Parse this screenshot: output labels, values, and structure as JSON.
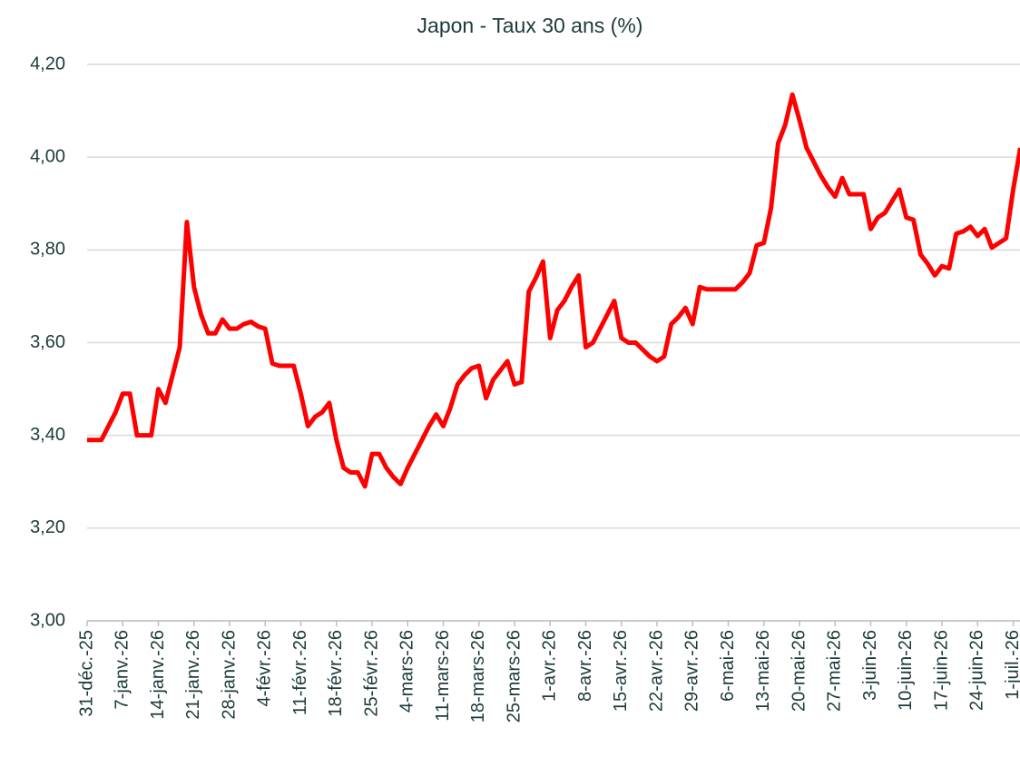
{
  "chart_data": {
    "type": "line",
    "title": "Japon - Taux 30 ans (%)",
    "color": "#ff0000",
    "categories": [
      "31-déc.-25",
      null,
      null,
      null,
      null,
      "7-janv.-26",
      null,
      null,
      null,
      null,
      "14-janv.-26",
      null,
      null,
      null,
      null,
      "21-janv.-26",
      null,
      null,
      null,
      null,
      "28-janv.-26",
      null,
      null,
      null,
      null,
      "4-févr.-26",
      null,
      null,
      null,
      null,
      "11-févr.-26",
      null,
      null,
      null,
      null,
      "18-févr.-26",
      null,
      null,
      null,
      null,
      "25-févr.-26",
      null,
      null,
      null,
      null,
      "4-mars-26",
      null,
      null,
      null,
      null,
      "11-mars-26",
      null,
      null,
      null,
      null,
      "18-mars-26",
      null,
      null,
      null,
      null,
      "25-mars-26",
      null,
      null,
      null,
      null,
      "1-avr.-26",
      null,
      null,
      null,
      null,
      "8-avr.-26",
      null,
      null,
      null,
      null,
      "15-avr.-26",
      null,
      null,
      null,
      null,
      "22-avr.-26",
      null,
      null,
      null,
      null,
      "29-avr.-26",
      null,
      null,
      null,
      null,
      "6-mai-26",
      null,
      null,
      null,
      null,
      "13-mai-26",
      null,
      null,
      null,
      null,
      "20-mai-26",
      null,
      null,
      null,
      null,
      "27-mai-26",
      null,
      null,
      null,
      null,
      "3-juin-26",
      null,
      null,
      null,
      null,
      "10-juin-26",
      null,
      null,
      null,
      null,
      "17-juin-26",
      null,
      null,
      null,
      null,
      "24-juin-26",
      null,
      null,
      null,
      null,
      "1-juil.-26",
      null
    ],
    "values": [
      3.39,
      3.39,
      3.39,
      3.42,
      3.45,
      3.49,
      3.49,
      3.4,
      3.4,
      3.4,
      3.5,
      3.47,
      3.53,
      3.59,
      3.86,
      3.72,
      3.66,
      3.62,
      3.62,
      3.65,
      3.63,
      3.63,
      3.64,
      3.645,
      3.635,
      3.63,
      3.555,
      3.55,
      3.55,
      3.55,
      3.49,
      3.42,
      3.44,
      3.45,
      3.47,
      3.39,
      3.33,
      3.32,
      3.32,
      3.29,
      3.36,
      3.36,
      3.33,
      3.31,
      3.295,
      3.33,
      3.36,
      3.39,
      3.42,
      3.445,
      3.42,
      3.46,
      3.51,
      3.53,
      3.545,
      3.55,
      3.48,
      3.52,
      3.54,
      3.56,
      3.51,
      3.515,
      3.71,
      3.74,
      3.775,
      3.61,
      3.67,
      3.69,
      3.72,
      3.745,
      3.59,
      3.6,
      3.63,
      3.66,
      3.69,
      3.61,
      3.6,
      3.6,
      3.585,
      3.57,
      3.56,
      3.57,
      3.64,
      3.655,
      3.675,
      3.64,
      3.72,
      3.715,
      3.715,
      3.715,
      3.715,
      3.715,
      3.73,
      3.75,
      3.81,
      3.815,
      3.89,
      4.03,
      4.07,
      4.135,
      4.08,
      4.02,
      3.99,
      3.96,
      3.935,
      3.915,
      3.955,
      3.92,
      3.92,
      3.92,
      3.845,
      3.87,
      3.88,
      3.905,
      3.93,
      3.87,
      3.865,
      3.79,
      3.77,
      3.745,
      3.765,
      3.76,
      3.835,
      3.84,
      3.85,
      3.83,
      3.845,
      3.805,
      3.815,
      3.825,
      3.93,
      4.02
    ],
    "ylim": [
      3,
      4.2
    ],
    "yticks": [
      {
        "value": 3,
        "label": "3,00"
      },
      {
        "value": 3.2,
        "label": "3,20"
      },
      {
        "value": 3.4,
        "label": "3,40"
      },
      {
        "value": 3.6,
        "label": "3,60"
      },
      {
        "value": 3.8,
        "label": "3,80"
      },
      {
        "value": 4,
        "label": "4,00"
      },
      {
        "value": 4.2,
        "label": "4,20"
      }
    ],
    "grid": true
  }
}
